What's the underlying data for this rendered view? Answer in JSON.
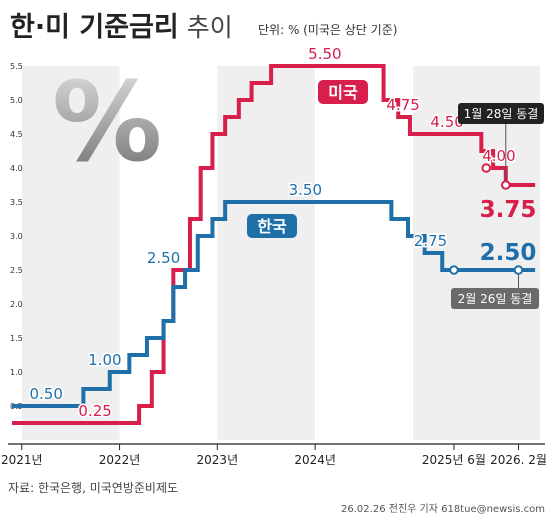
{
  "header": {
    "title_strong": "한·미 기준금리",
    "title_light": "추이",
    "unit": "단위: % (미국은 상단 기준)"
  },
  "footer": {
    "source": "자료: 한국은행, 미국연방준비제도",
    "credit": "26.02.26 전진우 기자 618tue@newsis.com"
  },
  "decor": {
    "percent_glyph": "%"
  },
  "colors": {
    "us": "#d81e4a",
    "kr": "#1f6fa8",
    "gridband": "#efefef",
    "axis": "#222222",
    "callout": "#222222",
    "callout_kr": "#6a6a6a"
  },
  "chart_data": {
    "type": "line",
    "step": true,
    "ylim": [
      0,
      5.5
    ],
    "yticks": [
      "0.5",
      "1.0",
      "1.5",
      "2.0",
      "2.5",
      "3.0",
      "3.5",
      "4.0",
      "4.5",
      "5.0",
      "5.5"
    ],
    "xticks": [
      {
        "label": "2021년",
        "x": 2021.0
      },
      {
        "label": "2022년",
        "x": 2022.0
      },
      {
        "label": "2023년",
        "x": 2023.0
      },
      {
        "label": "2024년",
        "x": 2024.0
      },
      {
        "label": "2025년 6월",
        "x": 2025.42
      },
      {
        "label": "2026. 2월",
        "x": 2026.08
      }
    ],
    "xlim": [
      2020.9,
      2026.3
    ],
    "series": [
      {
        "name": "미국",
        "key": "us",
        "points": [
          [
            2020.9,
            0.25
          ],
          [
            2022.2,
            0.5
          ],
          [
            2022.33,
            1.0
          ],
          [
            2022.45,
            1.75
          ],
          [
            2022.55,
            2.5
          ],
          [
            2022.72,
            3.25
          ],
          [
            2022.83,
            4.0
          ],
          [
            2022.95,
            4.5
          ],
          [
            2023.08,
            4.75
          ],
          [
            2023.22,
            5.0
          ],
          [
            2023.35,
            5.25
          ],
          [
            2023.55,
            5.5
          ],
          [
            2024.7,
            5.0
          ],
          [
            2024.85,
            4.75
          ],
          [
            2024.97,
            4.5
          ],
          [
            2025.7,
            4.25
          ],
          [
            2025.82,
            4.0
          ],
          [
            2025.95,
            3.75
          ],
          [
            2026.25,
            3.75
          ]
        ],
        "labels": [
          {
            "text": "0.25",
            "x": 2021.75,
            "y": 0.25
          },
          {
            "text": "5.50",
            "x": 2024.1,
            "y": 5.5
          },
          {
            "text": "4.75",
            "x": 2024.9,
            "y": 4.75
          },
          {
            "text": "4.50",
            "x": 2025.35,
            "y": 4.5
          },
          {
            "text": "4.00",
            "x": 2025.88,
            "y": 4.0
          }
        ],
        "final_label": "3.75",
        "tag": "미국",
        "freeze_callout": "1월 28일 동결"
      },
      {
        "name": "한국",
        "key": "kr",
        "points": [
          [
            2020.9,
            0.5
          ],
          [
            2021.63,
            0.75
          ],
          [
            2021.9,
            1.0
          ],
          [
            2022.1,
            1.25
          ],
          [
            2022.28,
            1.5
          ],
          [
            2022.45,
            1.75
          ],
          [
            2022.55,
            2.25
          ],
          [
            2022.67,
            2.5
          ],
          [
            2022.8,
            3.0
          ],
          [
            2022.95,
            3.25
          ],
          [
            2023.08,
            3.5
          ],
          [
            2024.78,
            3.25
          ],
          [
            2024.95,
            3.0
          ],
          [
            2025.12,
            2.75
          ],
          [
            2025.3,
            2.5
          ],
          [
            2026.25,
            2.5
          ]
        ],
        "labels": [
          {
            "text": "0.50",
            "x": 2021.25,
            "y": 0.5
          },
          {
            "text": "1.00",
            "x": 2021.85,
            "y": 1.0
          },
          {
            "text": "2.50",
            "x": 2022.45,
            "y": 2.5
          },
          {
            "text": "3.50",
            "x": 2023.9,
            "y": 3.5
          },
          {
            "text": "2.75",
            "x": 2025.18,
            "y": 2.75
          }
        ],
        "final_label": "2.50",
        "tag": "한국",
        "freeze_callout": "2월 26일 동결"
      }
    ],
    "markers": [
      {
        "series": "us",
        "x": 2025.75,
        "y": 4.0
      },
      {
        "series": "us",
        "x": 2025.95,
        "y": 3.75
      },
      {
        "series": "kr",
        "x": 2025.42,
        "y": 2.5
      },
      {
        "series": "kr",
        "x": 2026.08,
        "y": 2.5
      }
    ]
  }
}
